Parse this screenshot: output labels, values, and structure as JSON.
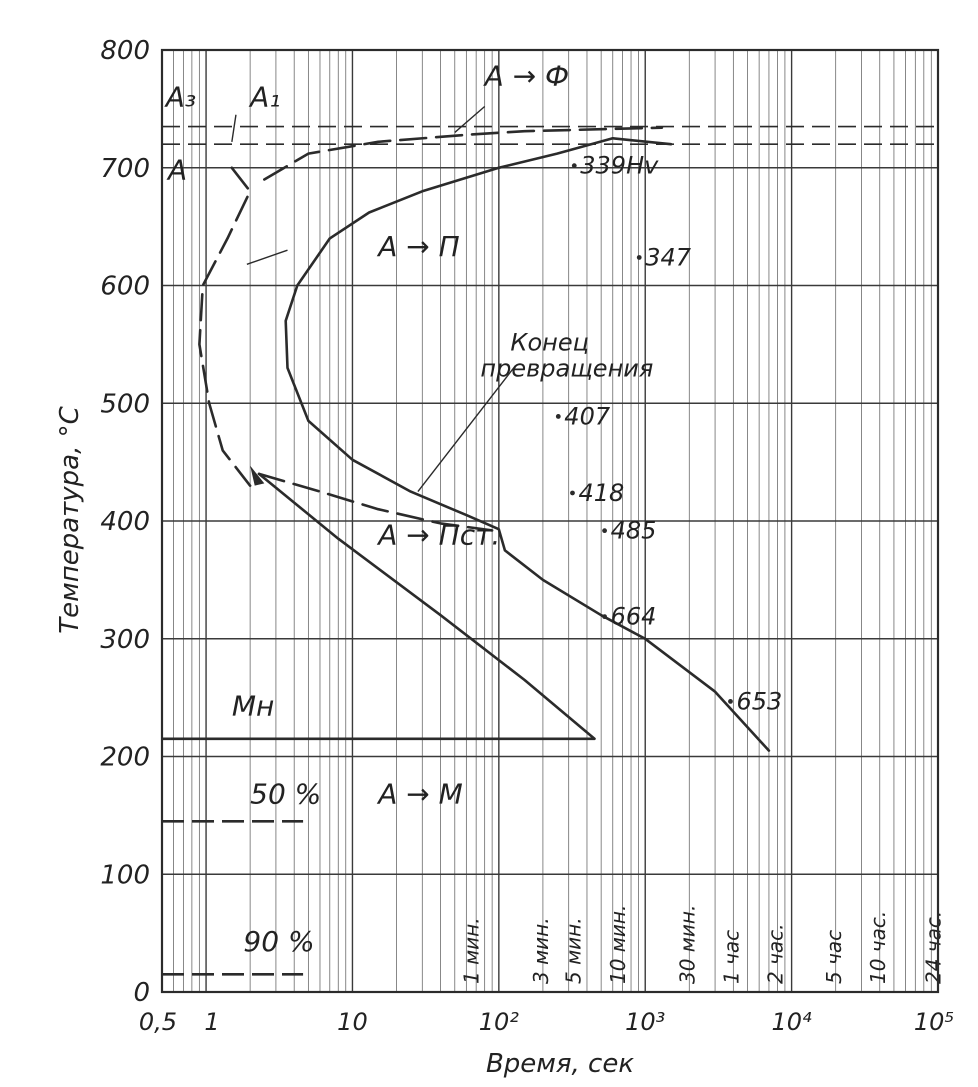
{
  "chart_data": {
    "type": "line",
    "title": "",
    "xlabel": "Время, сек",
    "ylabel": "Температура, °С",
    "x_scale": "log",
    "xlim": [
      0.5,
      100000
    ],
    "ylim": [
      0,
      800
    ],
    "grid": true,
    "x_ticks": [
      {
        "value": 0.5,
        "label": "0,5"
      },
      {
        "value": 1,
        "label": "1"
      },
      {
        "value": 10,
        "label": "10"
      },
      {
        "value": 100,
        "label": "10²"
      },
      {
        "value": 1000,
        "label": "10³"
      },
      {
        "value": 10000,
        "label": "10⁴"
      },
      {
        "value": 100000,
        "label": "10⁵"
      }
    ],
    "y_ticks": [
      0,
      100,
      200,
      300,
      400,
      500,
      600,
      700,
      800
    ],
    "y_tick_labels": [
      "0",
      "100",
      "200",
      "300",
      "400",
      "500",
      "600",
      "700",
      "800"
    ],
    "time_marks": [
      {
        "value": 60,
        "label": "1 мин."
      },
      {
        "value": 180,
        "label": "3 мин."
      },
      {
        "value": 300,
        "label": "5 мин."
      },
      {
        "value": 600,
        "label": "10 мин."
      },
      {
        "value": 1800,
        "label": "30 мин."
      },
      {
        "value": 3600,
        "label": "1 час"
      },
      {
        "value": 7200,
        "label": "2 час."
      },
      {
        "value": 18000,
        "label": "5 час"
      },
      {
        "value": 36000,
        "label": "10 час."
      },
      {
        "value": 86400,
        "label": "24 час."
      }
    ],
    "reference_lines": [
      {
        "label": "A₃",
        "y": 735,
        "style": "dashed"
      },
      {
        "label": "A₁",
        "y": 720,
        "style": "dashed"
      },
      {
        "label": "Mн",
        "y": 215,
        "style": "solid"
      },
      {
        "label": "50 %",
        "y": 145,
        "style": "dashed"
      },
      {
        "label": "90 %",
        "y": 15,
        "style": "dashed"
      }
    ],
    "series": [
      {
        "name": "",
        "style": "dashed",
        "points": [
          [
            1.5,
            700
          ],
          [
            2.0,
            680
          ],
          [
            1.4,
            640
          ],
          [
            0.95,
            600
          ],
          [
            0.9,
            550
          ],
          [
            1.05,
            500
          ],
          [
            1.3,
            460
          ],
          [
            2.0,
            430
          ]
        ]
      },
      {
        "name": "",
        "style": "dashed",
        "points": [
          [
            2.5,
            690
          ],
          [
            5,
            712
          ],
          [
            15,
            722
          ],
          [
            60,
            728
          ],
          [
            150,
            731
          ],
          [
            600,
            733
          ],
          [
            1300,
            734
          ]
        ]
      },
      {
        "name": "",
        "style": "dashed",
        "points": [
          [
            2.3,
            440
          ],
          [
            6,
            425
          ],
          [
            15,
            410
          ],
          [
            40,
            398
          ],
          [
            90,
            392
          ]
        ]
      },
      {
        "name": "",
        "style": "solid",
        "points": [
          [
            600,
            725
          ],
          [
            250,
            712
          ],
          [
            100,
            700
          ],
          [
            30,
            680
          ],
          [
            13,
            662
          ],
          [
            7,
            640
          ],
          [
            4.2,
            600
          ],
          [
            3.5,
            570
          ],
          [
            3.6,
            530
          ],
          [
            5,
            485
          ],
          [
            10,
            452
          ],
          [
            25,
            425
          ],
          [
            60,
            405
          ],
          [
            100,
            393
          ],
          [
            110,
            375
          ],
          [
            200,
            350
          ],
          [
            500,
            320
          ],
          [
            1000,
            300
          ],
          [
            3000,
            255
          ],
          [
            7000,
            205
          ]
        ]
      },
      {
        "name": "",
        "style": "solid",
        "points": [
          [
            600,
            725
          ],
          [
            1500,
            720
          ]
        ]
      },
      {
        "name": "",
        "style": "solid",
        "points": [
          [
            2.3,
            440
          ],
          [
            8,
            385
          ],
          [
            40,
            320
          ],
          [
            150,
            265
          ],
          [
            450,
            215
          ]
        ]
      }
    ],
    "annotations": [
      {
        "text": "A",
        "x": 0.55,
        "y": 690
      },
      {
        "text": "A₃",
        "x": 0.53,
        "y": 752
      },
      {
        "text": "A₁",
        "x": 2.0,
        "y": 752
      },
      {
        "text": "A → Ф",
        "x": 80,
        "y": 770
      },
      {
        "text": "A → П",
        "x": 15,
        "y": 625
      },
      {
        "text": "Конец превращения",
        "x": 120,
        "y": 545
      },
      {
        "text": "A → Пст.",
        "x": 15,
        "y": 380
      },
      {
        "text": "Mн",
        "x": 1.5,
        "y": 235
      },
      {
        "text": "A → M",
        "x": 15,
        "y": 160
      },
      {
        "text": "50 %",
        "x": 2.0,
        "y": 160
      },
      {
        "text": "90 %",
        "x": 1.8,
        "y": 35
      }
    ],
    "hardness_labels": [
      {
        "text": "339Hv",
        "x": 360,
        "y": 695
      },
      {
        "text": "347",
        "x": 1000,
        "y": 617
      },
      {
        "text": "407",
        "x": 280,
        "y": 482
      },
      {
        "text": "418",
        "x": 350,
        "y": 417
      },
      {
        "text": "485",
        "x": 580,
        "y": 385
      },
      {
        "text": "664",
        "x": 580,
        "y": 312
      },
      {
        "text": "653",
        "x": 4200,
        "y": 240
      }
    ]
  }
}
